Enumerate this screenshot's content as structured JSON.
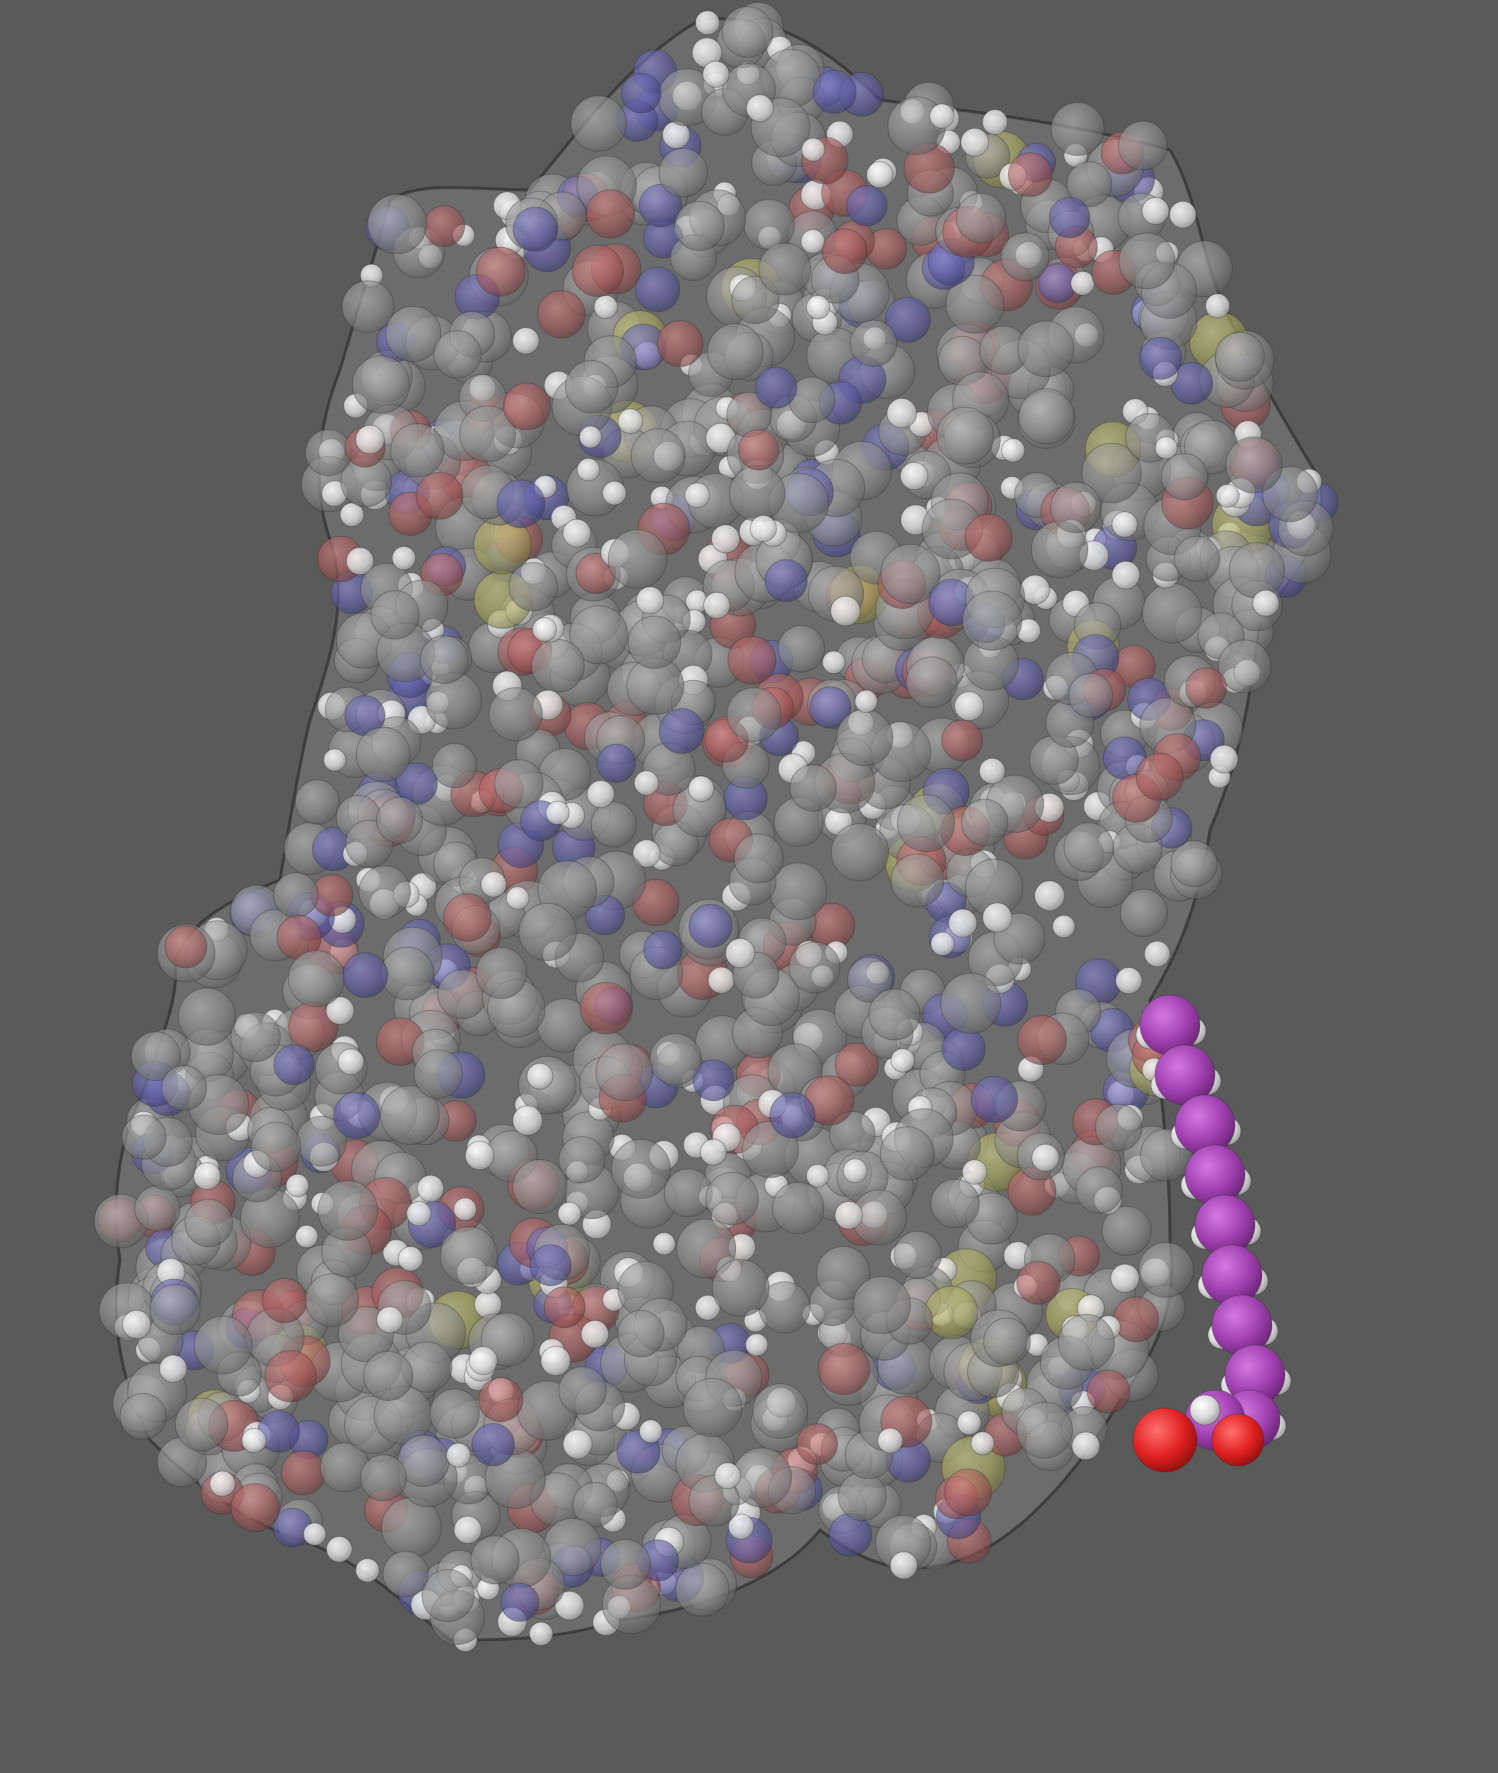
{
  "scene": {
    "background_color": "#5a5a5a",
    "representation": "space-filling",
    "protein_surface": "transparent",
    "element_colors": {
      "carbon": "#8c8c8c",
      "hydrogen": "#e6e6e6",
      "oxygen": "#c83c3c",
      "nitrogen": "#4646b4",
      "sulfur": "#b4b43c",
      "ligand_carbon": "#a040b0",
      "ligand_oxygen": "#e02020"
    }
  }
}
